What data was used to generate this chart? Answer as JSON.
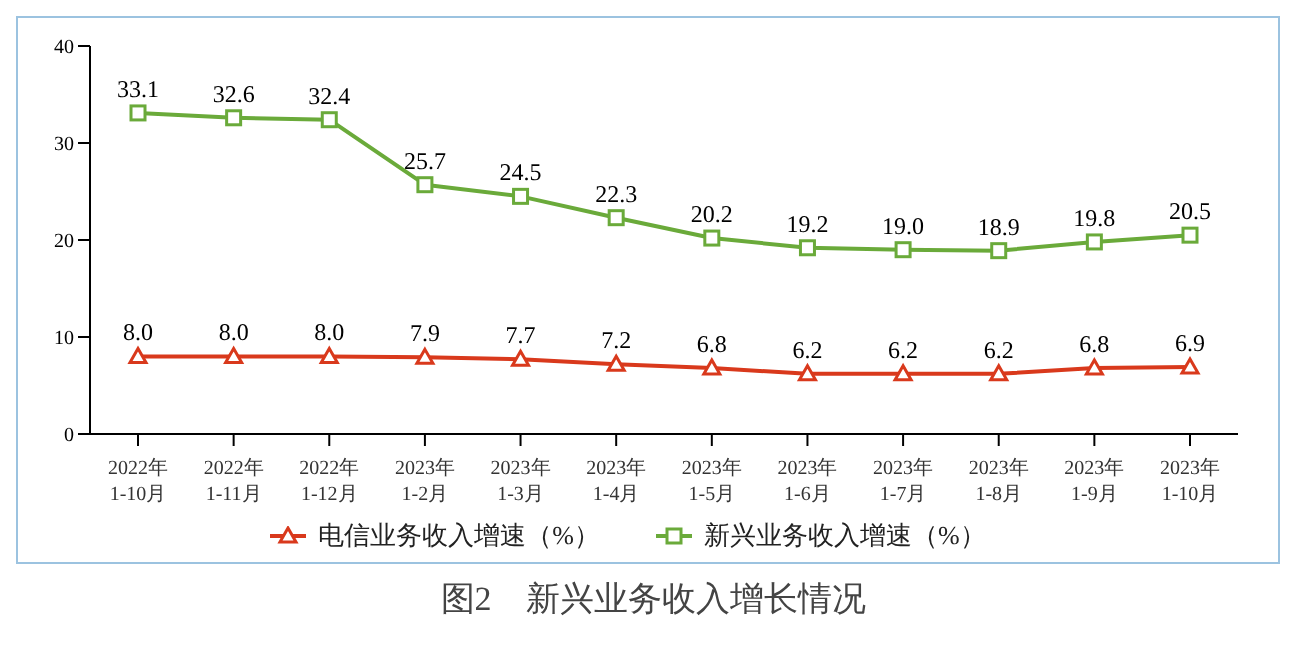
{
  "chart_data": {
    "type": "line",
    "title": "图2　新兴业务收入增长情况",
    "categories": [
      "2022年\n1-10月",
      "2022年\n1-11月",
      "2022年\n1-12月",
      "2023年\n1-2月",
      "2023年\n1-3月",
      "2023年\n1-4月",
      "2023年\n1-5月",
      "2023年\n1-6月",
      "2023年\n1-7月",
      "2023年\n1-8月",
      "2023年\n1-9月",
      "2023年\n1-10月"
    ],
    "series": [
      {
        "name": "电信业务收入增速（%）",
        "color": "#d9391c",
        "marker": "triangle",
        "values": [
          8,
          8,
          8,
          7.9,
          7.7,
          7.2,
          6.8,
          6.2,
          6.2,
          6.2,
          6.8,
          6.9
        ],
        "value_labels": [
          "8.0",
          "8.0",
          "8.0",
          "7.9",
          "7.7",
          "7.2",
          "6.8",
          "6.2",
          "6.2",
          "6.2",
          "6.8",
          "6.9"
        ]
      },
      {
        "name": "新兴业务收入增速（%）",
        "color": "#6aaa3a",
        "marker": "square",
        "values": [
          33.1,
          32.6,
          32.4,
          25.7,
          24.5,
          22.3,
          20.2,
          19.2,
          19,
          18.9,
          19.8,
          20.5
        ],
        "value_labels": [
          "33.1",
          "32.6",
          "32.4",
          "25.7",
          "24.5",
          "22.3",
          "20.2",
          "19.2",
          "19.0",
          "18.9",
          "19.8",
          "20.5"
        ]
      }
    ],
    "ylim": [
      0,
      40
    ],
    "yticks": [
      0,
      10,
      20,
      30,
      40
    ],
    "grid": false,
    "legend": "bottom"
  }
}
